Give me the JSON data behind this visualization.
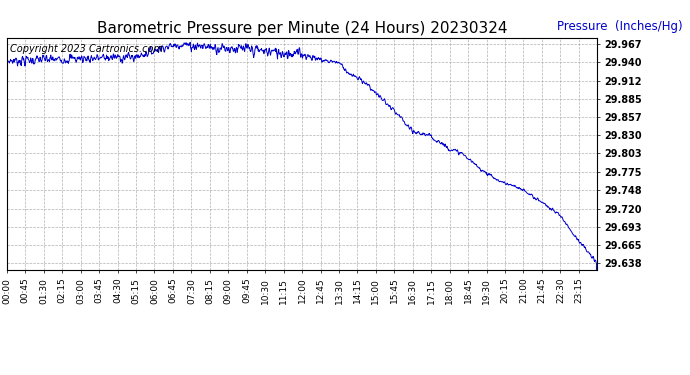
{
  "title": "Barometric Pressure per Minute (24 Hours) 20230324",
  "copyright_text": "Copyright 2023 Cartronics.com",
  "legend_label": "Pressure  (Inches/Hg)",
  "background_color": "#ffffff",
  "line_color": "#0000cc",
  "grid_color": "#aaaaaa",
  "yticks": [
    29.638,
    29.665,
    29.693,
    29.72,
    29.748,
    29.775,
    29.803,
    29.83,
    29.857,
    29.885,
    29.912,
    29.94,
    29.967
  ],
  "ylim": [
    29.628,
    29.977
  ],
  "xtick_labels": [
    "00:00",
    "00:45",
    "01:30",
    "02:15",
    "03:00",
    "03:45",
    "04:30",
    "05:15",
    "06:00",
    "06:45",
    "07:30",
    "08:15",
    "09:00",
    "09:45",
    "10:30",
    "11:15",
    "12:00",
    "12:45",
    "13:30",
    "14:15",
    "15:00",
    "15:45",
    "16:30",
    "17:15",
    "18:00",
    "18:45",
    "19:30",
    "20:15",
    "21:00",
    "21:45",
    "22:30",
    "23:15"
  ],
  "title_fontsize": 11,
  "axis_fontsize": 7,
  "copyright_fontsize": 7,
  "legend_fontsize": 8.5,
  "segments": [
    [
      0,
      315,
      29.942,
      29.948,
      0.006
    ],
    [
      315,
      380,
      29.948,
      29.962,
      0.005
    ],
    [
      380,
      430,
      29.962,
      29.967,
      0.004
    ],
    [
      430,
      720,
      29.967,
      29.952,
      0.007
    ],
    [
      720,
      770,
      29.952,
      29.943,
      0.004
    ],
    [
      770,
      810,
      29.943,
      29.94,
      0.003
    ],
    [
      810,
      840,
      29.94,
      29.92,
      0.003
    ],
    [
      840,
      870,
      29.92,
      29.912,
      0.003
    ],
    [
      870,
      915,
      29.912,
      29.885,
      0.003
    ],
    [
      915,
      960,
      29.885,
      29.857,
      0.003
    ],
    [
      960,
      990,
      29.857,
      29.835,
      0.003
    ],
    [
      990,
      1020,
      29.835,
      29.832,
      0.003
    ],
    [
      1020,
      1050,
      29.832,
      29.823,
      0.003
    ],
    [
      1050,
      1080,
      29.823,
      29.81,
      0.003
    ],
    [
      1080,
      1110,
      29.81,
      29.803,
      0.002
    ],
    [
      1110,
      1155,
      29.803,
      29.78,
      0.002
    ],
    [
      1155,
      1200,
      29.78,
      29.762,
      0.002
    ],
    [
      1200,
      1260,
      29.762,
      29.748,
      0.002
    ],
    [
      1260,
      1305,
      29.748,
      29.73,
      0.002
    ],
    [
      1305,
      1350,
      29.73,
      29.71,
      0.002
    ],
    [
      1350,
      1395,
      29.71,
      29.672,
      0.002
    ],
    [
      1395,
      1440,
      29.672,
      29.638,
      0.002
    ]
  ]
}
